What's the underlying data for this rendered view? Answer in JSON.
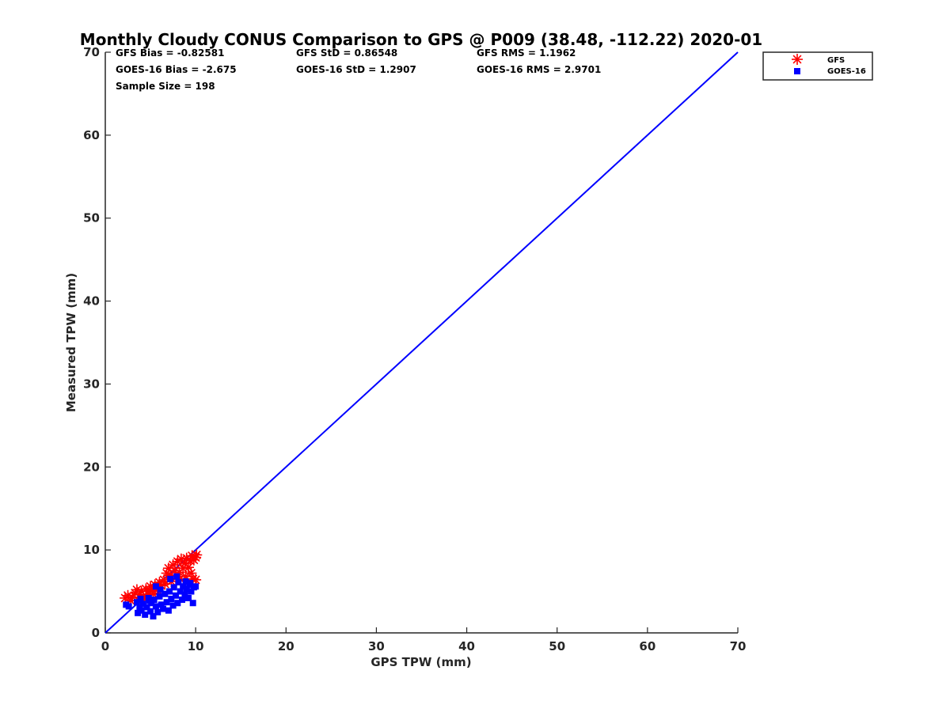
{
  "chart_data": {
    "type": "scatter",
    "title": "Monthly Cloudy CONUS Comparison to GPS @ P009 (38.48, -112.22) 2020-01",
    "xlabel": "GPS TPW (mm)",
    "ylabel": "Measured TPW (mm)",
    "xlim": [
      0,
      70
    ],
    "ylim": [
      0,
      70
    ],
    "xticks": [
      0,
      10,
      20,
      30,
      40,
      50,
      60,
      70
    ],
    "yticks": [
      0,
      10,
      20,
      30,
      40,
      50,
      60,
      70
    ],
    "grid": false,
    "legend_position": "top-right, outside plot",
    "stats": [
      [
        "GFS Bias = -0.82581",
        "GFS StD = 0.86548",
        "GFS RMS = 1.1962"
      ],
      [
        "GOES-16 Bias = -2.675",
        "GOES-16 StD = 1.2907",
        "GOES-16 RMS = 2.9701"
      ],
      [
        "Sample Size = 198"
      ]
    ],
    "reference_line": {
      "from": [
        0,
        0
      ],
      "to": [
        70,
        70
      ],
      "color": "#0000ff"
    },
    "series": [
      {
        "name": "GFS",
        "marker": "asterisk",
        "color": "#ff0000",
        "points": [
          [
            2.2,
            4.2
          ],
          [
            2.5,
            4.5
          ],
          [
            2.8,
            3.9
          ],
          [
            3.0,
            4.3
          ],
          [
            3.3,
            4.8
          ],
          [
            3.5,
            5.2
          ],
          [
            3.8,
            4.6
          ],
          [
            4.0,
            5.0
          ],
          [
            4.2,
            4.4
          ],
          [
            4.5,
            5.3
          ],
          [
            4.7,
            5.0
          ],
          [
            5.0,
            5.6
          ],
          [
            5.2,
            5.2
          ],
          [
            5.5,
            5.8
          ],
          [
            5.8,
            5.4
          ],
          [
            6.0,
            6.1
          ],
          [
            6.2,
            5.7
          ],
          [
            6.5,
            6.4
          ],
          [
            6.8,
            7.2
          ],
          [
            7.0,
            7.8
          ],
          [
            7.2,
            6.9
          ],
          [
            7.5,
            8.2
          ],
          [
            7.7,
            7.5
          ],
          [
            8.0,
            8.6
          ],
          [
            8.2,
            7.3
          ],
          [
            8.4,
            8.9
          ],
          [
            8.6,
            7.8
          ],
          [
            8.8,
            8.4
          ],
          [
            9.0,
            9.0
          ],
          [
            9.2,
            7.9
          ],
          [
            9.4,
            8.7
          ],
          [
            9.6,
            9.3
          ],
          [
            9.8,
            8.8
          ],
          [
            10.0,
            9.1
          ],
          [
            10.1,
            9.4
          ],
          [
            9.5,
            7.2
          ],
          [
            8.9,
            6.8
          ],
          [
            8.3,
            6.5
          ],
          [
            7.8,
            6.6
          ],
          [
            7.3,
            6.2
          ],
          [
            6.6,
            5.9
          ],
          [
            5.9,
            5.0
          ],
          [
            5.3,
            4.7
          ],
          [
            4.8,
            4.6
          ],
          [
            4.3,
            4.1
          ],
          [
            3.7,
            3.9
          ],
          [
            9.7,
            6.5
          ],
          [
            10.0,
            6.4
          ]
        ]
      },
      {
        "name": "GOES-16",
        "marker": "square",
        "color": "#0000ff",
        "points": [
          [
            2.3,
            3.4
          ],
          [
            2.6,
            3.2
          ],
          [
            3.5,
            3.7
          ],
          [
            3.6,
            2.4
          ],
          [
            3.8,
            3.0
          ],
          [
            4.0,
            2.7
          ],
          [
            4.2,
            3.5
          ],
          [
            4.4,
            2.2
          ],
          [
            4.6,
            3.1
          ],
          [
            4.8,
            4.2
          ],
          [
            5.0,
            2.6
          ],
          [
            5.1,
            3.6
          ],
          [
            5.3,
            2.0
          ],
          [
            5.4,
            4.0
          ],
          [
            5.6,
            3.2
          ],
          [
            5.8,
            2.5
          ],
          [
            6.0,
            4.4
          ],
          [
            6.2,
            3.4
          ],
          [
            6.4,
            2.9
          ],
          [
            6.6,
            4.7
          ],
          [
            6.8,
            3.7
          ],
          [
            7.0,
            2.7
          ],
          [
            7.1,
            5.0
          ],
          [
            7.3,
            4.1
          ],
          [
            7.5,
            3.3
          ],
          [
            7.6,
            5.5
          ],
          [
            7.8,
            4.5
          ],
          [
            8.0,
            3.6
          ],
          [
            8.1,
            6.1
          ],
          [
            8.3,
            5.0
          ],
          [
            8.5,
            4.0
          ],
          [
            8.6,
            5.6
          ],
          [
            8.8,
            4.6
          ],
          [
            9.0,
            5.3
          ],
          [
            9.2,
            4.2
          ],
          [
            9.3,
            5.8
          ],
          [
            9.5,
            5.0
          ],
          [
            9.7,
            3.6
          ],
          [
            9.8,
            5.5
          ],
          [
            10.0,
            5.6
          ],
          [
            7.2,
            6.5
          ],
          [
            6.1,
            5.2
          ],
          [
            5.6,
            5.6
          ],
          [
            4.9,
            3.9
          ],
          [
            3.9,
            4.1
          ],
          [
            8.9,
            6.2
          ],
          [
            9.4,
            6.0
          ],
          [
            7.9,
            6.8
          ]
        ]
      }
    ]
  }
}
